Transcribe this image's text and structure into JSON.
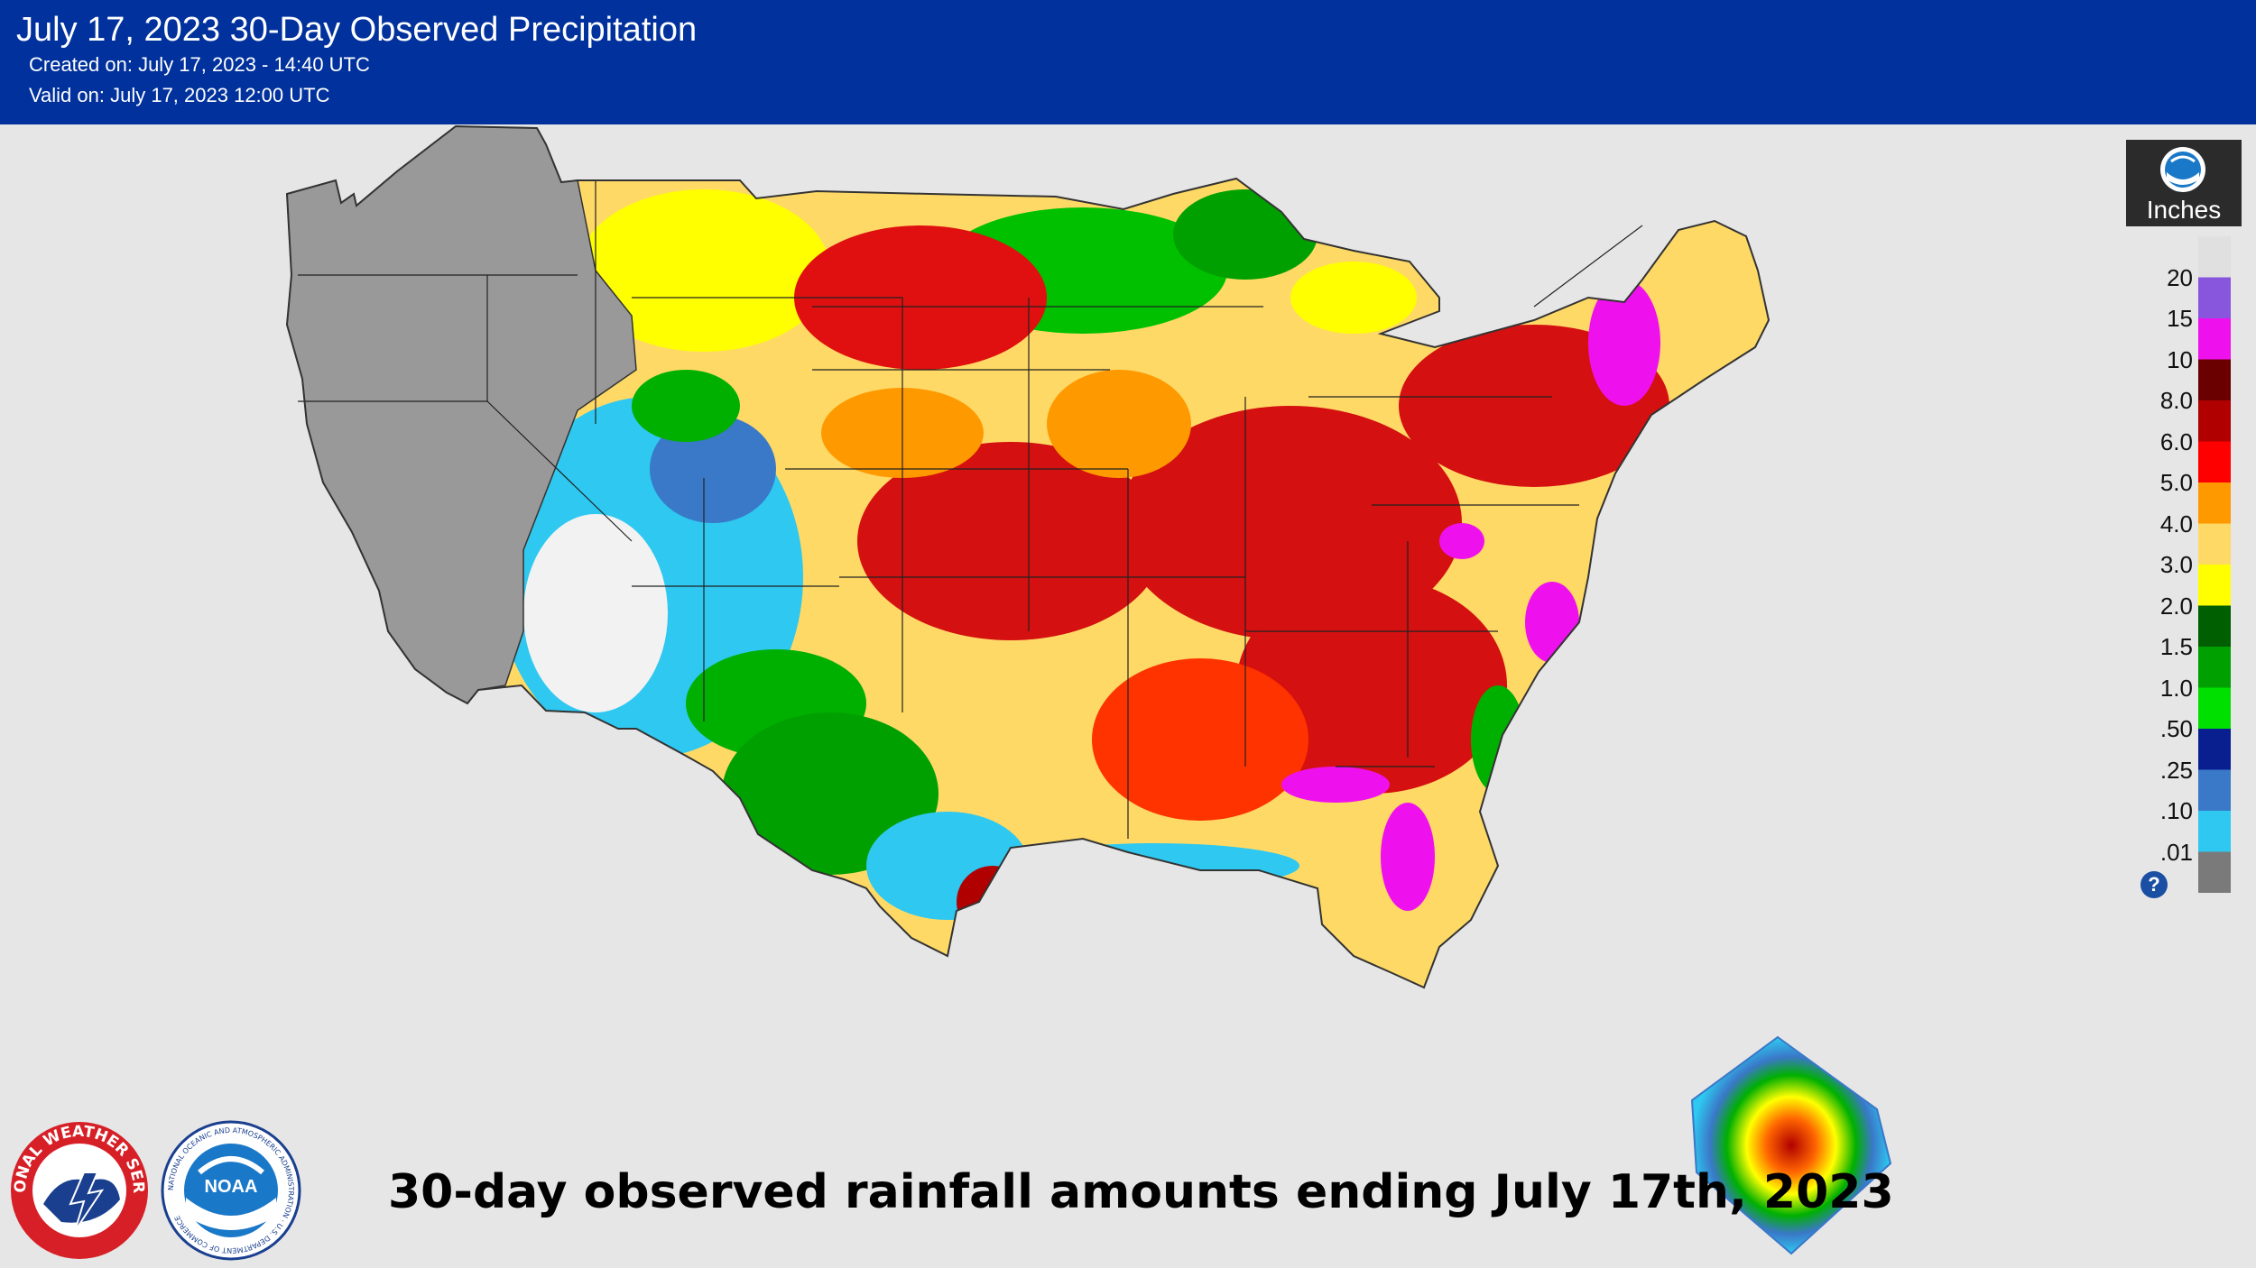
{
  "header": {
    "title": "July 17, 2023 30-Day Observed Precipitation",
    "created": "Created on: July 17, 2023 - 14:40 UTC",
    "valid": "Valid on: July 17, 2023 12:00 UTC"
  },
  "legend": {
    "unit": "Inches",
    "labels": [
      "20",
      "15",
      "10",
      "8.0",
      "6.0",
      "5.0",
      "4.0",
      "3.0",
      "2.0",
      "1.5",
      "1.0",
      ".50",
      ".25",
      ".10",
      ".01"
    ],
    "colors": [
      "#e0e0e0",
      "#8855dd",
      "#ee11ee",
      "#6b0000",
      "#b00000",
      "#ff0000",
      "#ff9900",
      "#ffd966",
      "#ffff00",
      "#005f00",
      "#00a000",
      "#00e000",
      "#0a1f8f",
      "#3a78c8",
      "#2ec8f0",
      "#7a7a7a"
    ],
    "help_label": "?"
  },
  "caption": "30-day observed rainfall amounts ending July 17th, 2023",
  "logos": {
    "nws": "NATIONAL WEATHER SERVICE",
    "noaa": "NOAA",
    "noaa_ring": "NATIONAL OCEANIC AND ATMOSPHERIC ADMINISTRATION · U.S. DEPARTMENT OF COMMERCE"
  }
}
